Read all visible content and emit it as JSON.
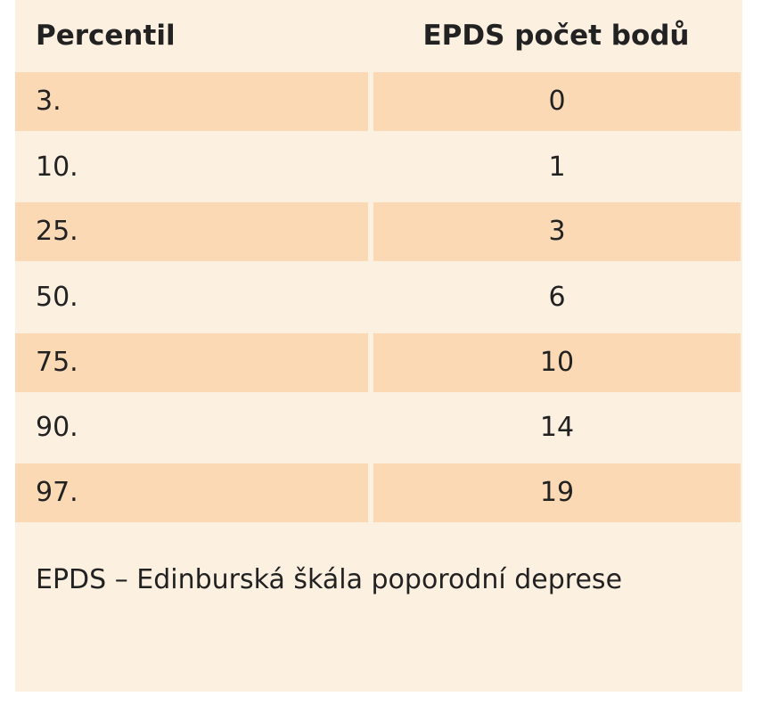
{
  "table": {
    "headers": {
      "percentile": "Percentil",
      "score": "EPDS počet bodů"
    },
    "rows": [
      {
        "percentile": "3.",
        "score": "0"
      },
      {
        "percentile": "10.",
        "score": "1"
      },
      {
        "percentile": "25.",
        "score": "3"
      },
      {
        "percentile": "50.",
        "score": "6"
      },
      {
        "percentile": "75.",
        "score": "10"
      },
      {
        "percentile": "90.",
        "score": "14"
      },
      {
        "percentile": "97.",
        "score": "19"
      }
    ],
    "footnote": "EPDS – Edinburská škála poporodní deprese"
  },
  "colors": {
    "background": "#fcf0e1",
    "row_shade": "#fbd9b5",
    "text": "#222222"
  }
}
